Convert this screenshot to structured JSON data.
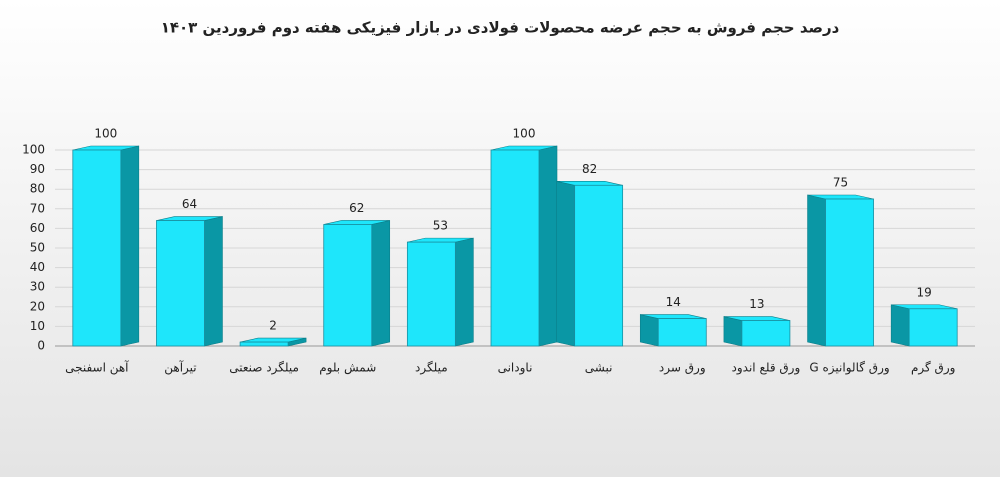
{
  "chart_data": {
    "type": "bar3d",
    "title": "درصد حجم فروش به حجم عرضه محصولات فولادی در بازار فیزیکی هفته دوم فروردین ۱۴۰۳",
    "categories": [
      "آهن اسفنجی",
      "تیرآهن",
      "میلگرد صنعتی",
      "شمش بلوم",
      "میلگرد",
      "ناودانی",
      "نبشی",
      "ورق سرد",
      "ورق قلع اندود",
      "ورق گالوانیزه G",
      "ورق گرم"
    ],
    "values": [
      100,
      64,
      2,
      62,
      53,
      100,
      82,
      14,
      13,
      75,
      19
    ],
    "color": "#1ee6fb",
    "side_color": "#0a97a5",
    "ylim": [
      0,
      100
    ],
    "yticks": [
      0,
      10,
      20,
      30,
      40,
      50,
      60,
      70,
      80,
      90,
      100
    ],
    "grid": true
  }
}
